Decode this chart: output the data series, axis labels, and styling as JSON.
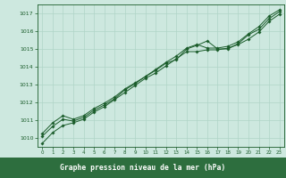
{
  "background_color": "#cde8df",
  "grid_color": "#b0d4c8",
  "line_color": "#1a5c2a",
  "hours": [
    0,
    1,
    2,
    3,
    4,
    5,
    6,
    7,
    8,
    9,
    10,
    11,
    12,
    13,
    14,
    15,
    16,
    17,
    18,
    19,
    20,
    21,
    22,
    23
  ],
  "series1": [
    1009.7,
    1010.3,
    1010.7,
    1010.85,
    1011.05,
    1011.45,
    1011.75,
    1012.15,
    1012.55,
    1012.95,
    1013.35,
    1013.65,
    1014.05,
    1014.45,
    1014.85,
    1014.85,
    1014.95,
    1014.95,
    1015.05,
    1015.25,
    1015.55,
    1015.95,
    1016.55,
    1016.95
  ],
  "series2": [
    1010.1,
    1010.65,
    1011.05,
    1010.95,
    1011.15,
    1011.55,
    1011.85,
    1012.2,
    1012.7,
    1013.05,
    1013.45,
    1013.8,
    1014.2,
    1014.4,
    1015.0,
    1015.2,
    1015.45,
    1015.0,
    1015.0,
    1015.3,
    1015.8,
    1016.1,
    1016.7,
    1017.1
  ],
  "series3": [
    1010.25,
    1010.85,
    1011.25,
    1011.05,
    1011.25,
    1011.65,
    1011.95,
    1012.3,
    1012.75,
    1013.1,
    1013.45,
    1013.85,
    1014.25,
    1014.6,
    1015.05,
    1015.25,
    1015.05,
    1015.05,
    1015.15,
    1015.4,
    1015.85,
    1016.25,
    1016.85,
    1017.2
  ],
  "ylim_min": 1009.5,
  "ylim_max": 1017.5,
  "yticks": [
    1010,
    1011,
    1012,
    1013,
    1014,
    1015,
    1016,
    1017
  ],
  "xlabel_text": "Graphe pression niveau de la mer (hPa)",
  "xlabel_bg": "#2d6e3e",
  "xlabel_fg": "#ffffff",
  "tick_color": "#1a5c2a"
}
